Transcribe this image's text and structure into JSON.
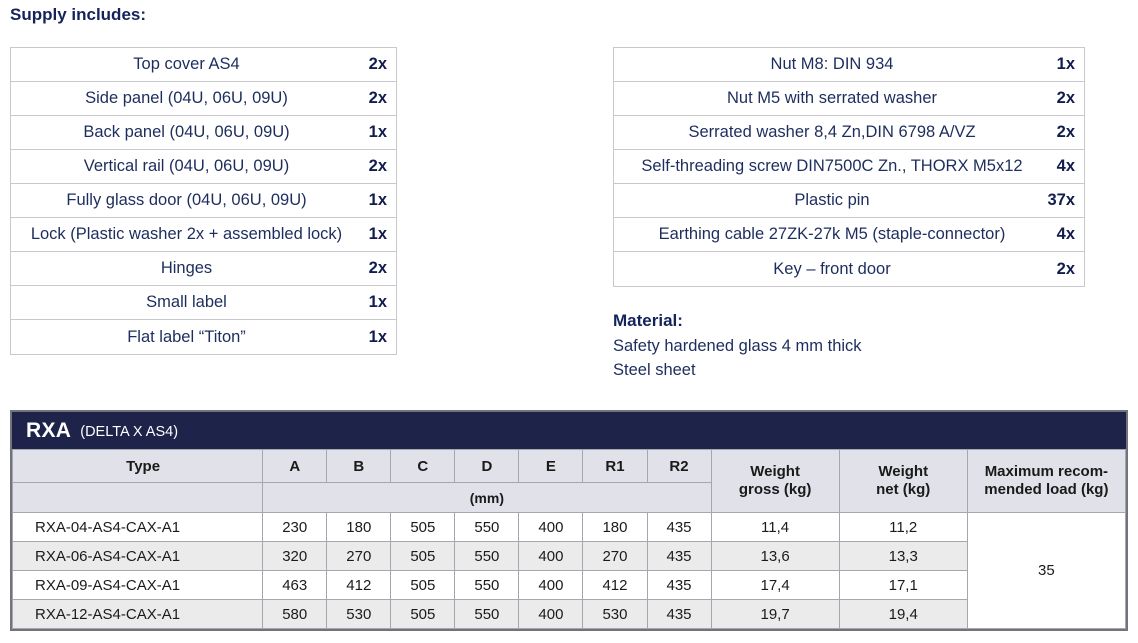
{
  "heading": "Supply includes:",
  "supply_left": [
    {
      "item": "Top cover AS4",
      "qty": "2x"
    },
    {
      "item": "Side panel (04U, 06U, 09U)",
      "qty": "2x"
    },
    {
      "item": "Back panel (04U, 06U, 09U)",
      "qty": "1x"
    },
    {
      "item": "Vertical rail (04U, 06U, 09U)",
      "qty": "2x"
    },
    {
      "item": "Fully glass door (04U, 06U, 09U)",
      "qty": "1x"
    },
    {
      "item": "Lock (Plastic washer 2x + assembled lock)",
      "qty": "1x"
    },
    {
      "item": "Hinges",
      "qty": "2x"
    },
    {
      "item": "Small label",
      "qty": "1x"
    },
    {
      "item": "Flat label “Titon”",
      "qty": "1x"
    }
  ],
  "supply_right": [
    {
      "item": "Nut M8: DIN 934",
      "qty": "1x"
    },
    {
      "item": "Nut M5 with serrated washer",
      "qty": "2x"
    },
    {
      "item": "Serrated washer 8,4 Zn,DIN 6798 A/VZ",
      "qty": "2x"
    },
    {
      "item": "Self-threading screw DIN7500C Zn., THORX M5x12",
      "qty": "4x"
    },
    {
      "item": "Plastic pin",
      "qty": "37x"
    },
    {
      "item": "Earthing cable 27ZK-27k M5 (staple-connector)",
      "qty": "4x"
    },
    {
      "item": "Key – front door",
      "qty": "2x"
    }
  ],
  "material": {
    "heading": "Material:",
    "line1": "Safety hardened glass 4 mm thick",
    "line2": "Steel sheet"
  },
  "spec_table": {
    "title": "RXA",
    "subtitle": "(DELTA X AS4)",
    "headers": {
      "type": "Type",
      "dims": [
        "A",
        "B",
        "C",
        "D",
        "E",
        "R1",
        "R2"
      ],
      "unit": "(mm)",
      "weight_gross_line1": "Weight",
      "weight_gross_line2": "gross (kg)",
      "weight_net_line1": "Weight",
      "weight_net_line2": "net (kg)",
      "max_load_line1": "Maximum recom-",
      "max_load_line2": "mended load (kg)"
    },
    "rows": [
      {
        "type": "RXA-04-AS4-CAX-A1",
        "dims": [
          "230",
          "180",
          "505",
          "550",
          "400",
          "180",
          "435"
        ],
        "weight_gross": "11,4",
        "weight_net": "11,2"
      },
      {
        "type": "RXA-06-AS4-CAX-A1",
        "dims": [
          "320",
          "270",
          "505",
          "550",
          "400",
          "270",
          "435"
        ],
        "weight_gross": "13,6",
        "weight_net": "13,3"
      },
      {
        "type": "RXA-09-AS4-CAX-A1",
        "dims": [
          "463",
          "412",
          "505",
          "550",
          "400",
          "412",
          "435"
        ],
        "weight_gross": "17,4",
        "weight_net": "17,1"
      },
      {
        "type": "RXA-12-AS4-CAX-A1",
        "dims": [
          "580",
          "530",
          "505",
          "550",
          "400",
          "530",
          "435"
        ],
        "weight_gross": "19,7",
        "weight_net": "19,4"
      }
    ],
    "max_load": "35"
  },
  "colors": {
    "title_bar_navy": "#1d2349",
    "navy_text": "#1d2d5e",
    "qty_navy": "#101d4d",
    "header_bg": "#e1e1ea",
    "stripe_bg": "#ebebeb",
    "outer_border": "#73737b"
  }
}
